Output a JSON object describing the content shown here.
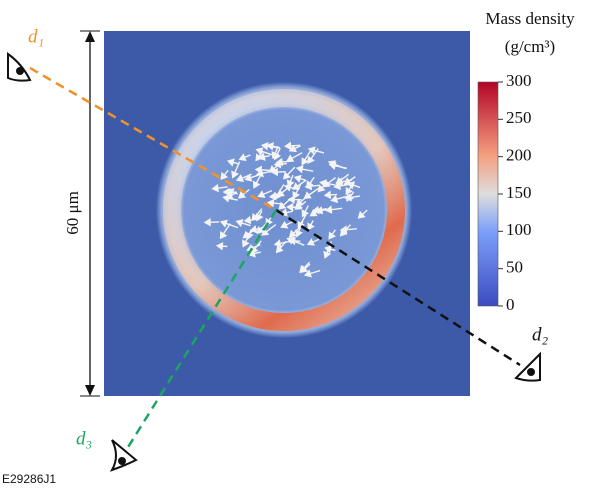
{
  "figure": {
    "colorbar": {
      "title": "Mass density",
      "unit": "(g/cm³)",
      "range": [
        0,
        300
      ],
      "ticks": [
        0,
        50,
        100,
        150,
        200,
        250,
        300
      ]
    },
    "scale_bar": "60 μm",
    "detectors": [
      "d₁",
      "d₂",
      "d₃"
    ],
    "figure_id": "E29286J1"
  }
}
